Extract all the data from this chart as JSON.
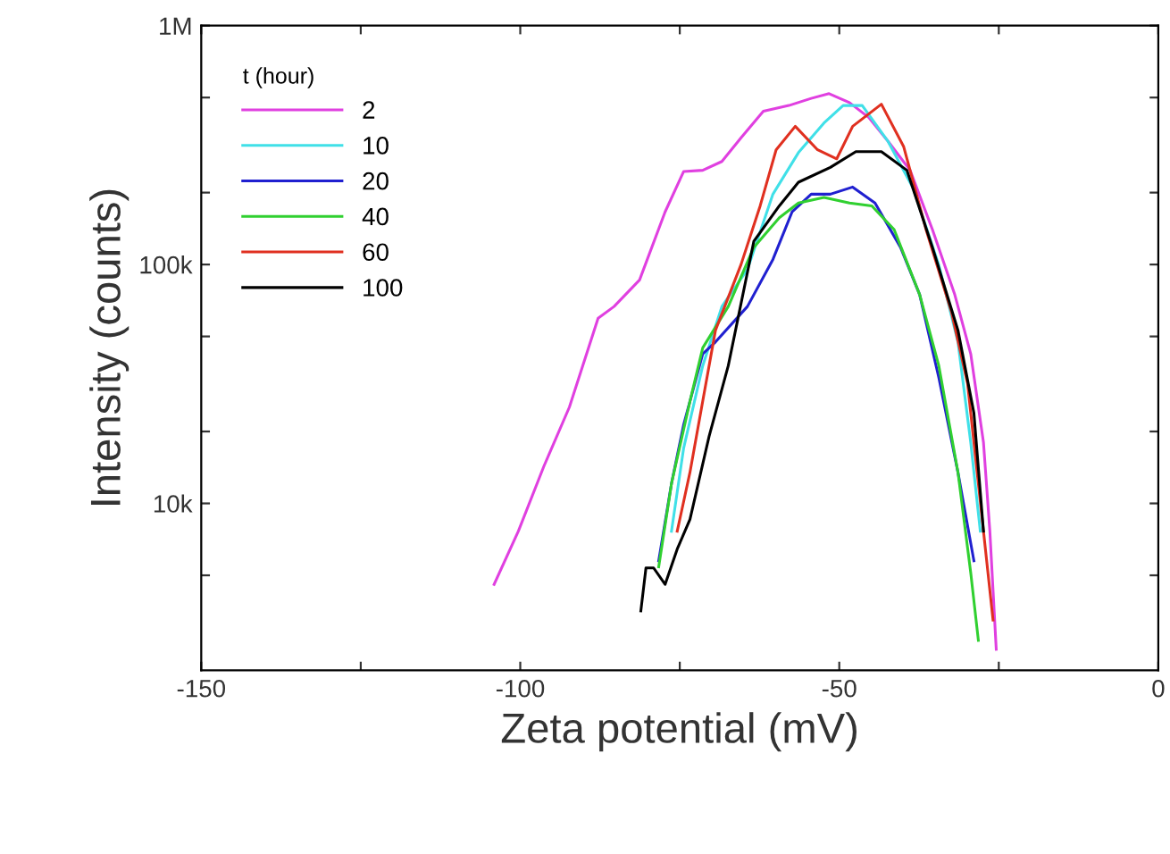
{
  "chart_data": {
    "type": "line",
    "xlabel": "Zeta potential (mV)",
    "ylabel": "Intensity (counts)",
    "legend_title": "t (hour)",
    "legend": "top left",
    "grid": false,
    "log": "y",
    "xlim": [
      -150,
      0
    ],
    "xticks": [
      -150,
      {
        "value": -125,
        "label": null
      },
      -100,
      {
        "value": -75,
        "label": null
      },
      -50,
      {
        "value": -25,
        "label": null
      },
      0
    ],
    "ylim": [
      2000,
      1000000
    ],
    "yticks": [
      {
        "value": 5000,
        "label": null
      },
      {
        "value": 10000,
        "label": "10k"
      },
      {
        "value": 20000,
        "label": null
      },
      {
        "value": 50000,
        "label": null
      },
      {
        "value": 100000,
        "label": "100k"
      },
      {
        "value": 200000,
        "label": null
      },
      {
        "value": 500000,
        "label": null
      },
      {
        "value": 1000000,
        "label": "1M"
      }
    ],
    "series": [
      {
        "name": "2",
        "color": "#e040e0",
        "x": [
          -104.1,
          -100.3,
          -96.3,
          -92.3,
          -87.8,
          -85.3,
          -81.3,
          -77.3,
          -74.4,
          -71.4,
          -68.4,
          -65.4,
          -61.9,
          -57.9,
          -54.4,
          -51.6,
          -48.4,
          -45.4,
          -42.4,
          -38.9,
          -35.4,
          -31.9,
          -29.4,
          -27.4,
          -26.4,
          -25.4
        ],
        "values": [
          4580,
          7650,
          14300,
          25300,
          59600,
          66700,
          86200,
          166000,
          245000,
          248000,
          270000,
          339000,
          438000,
          463000,
          496000,
          519000,
          476000,
          413000,
          329000,
          248000,
          140000,
          74800,
          42300,
          18000,
          7650,
          2450
        ]
      },
      {
        "name": "10",
        "color": "#40e0e8",
        "x": [
          -76.3,
          -74.4,
          -71.4,
          -68.4,
          -64.4,
          -60.4,
          -56.4,
          -52.4,
          -49.4,
          -46.4,
          -42.4,
          -38.4,
          -34.4,
          -31.4,
          -29.4,
          -27.9
        ],
        "values": [
          7650,
          17000,
          37700,
          66700,
          95300,
          197000,
          294000,
          391000,
          463000,
          463000,
          329000,
          208000,
          99500,
          47400,
          18000,
          7650
        ]
      },
      {
        "name": "20",
        "color": "#2020d0",
        "x": [
          -78.3,
          -76.3,
          -74.4,
          -71.4,
          -69.4,
          -64.4,
          -60.4,
          -57.4,
          -54.4,
          -51.4,
          -47.9,
          -44.4,
          -40.4,
          -37.4,
          -34.4,
          -31.4,
          -28.9
        ],
        "values": [
          5750,
          12100,
          21300,
          42300,
          47400,
          66700,
          105000,
          166000,
          197000,
          197000,
          211000,
          181000,
          118000,
          74800,
          33600,
          13500,
          5750
        ]
      },
      {
        "name": "40",
        "color": "#30d030",
        "x": [
          -78.3,
          -76.3,
          -73.4,
          -71.4,
          -67.4,
          -63.4,
          -59.4,
          -56.4,
          -52.4,
          -48.4,
          -44.9,
          -41.4,
          -37.4,
          -34.4,
          -31.4,
          -29.4,
          -28.2
        ],
        "values": [
          5430,
          12100,
          26800,
          44800,
          66700,
          118000,
          157000,
          181000,
          191000,
          181000,
          176000,
          140000,
          74800,
          37700,
          13500,
          5130,
          2670
        ]
      },
      {
        "name": "60",
        "color": "#e03020",
        "x": [
          -75.4,
          -73.4,
          -71.4,
          -69.4,
          -65.4,
          -62.4,
          -59.9,
          -56.9,
          -53.4,
          -50.4,
          -47.9,
          -43.4,
          -39.9,
          -36.4,
          -32.4,
          -29.9,
          -27.9,
          -25.9
        ],
        "values": [
          7650,
          13500,
          26800,
          53100,
          100000,
          176000,
          302000,
          379000,
          302000,
          277000,
          379000,
          469000,
          311000,
          140000,
          63100,
          31800,
          10200,
          3250
        ]
      },
      {
        "name": "100",
        "color": "#000000",
        "x": [
          -81.1,
          -80.3,
          -79.1,
          -77.3,
          -75.4,
          -73.4,
          -70.4,
          -67.4,
          -63.4,
          -59.4,
          -56.4,
          -51.4,
          -47.4,
          -43.4,
          -39.4,
          -35.4,
          -31.4,
          -28.9,
          -27.4
        ],
        "values": [
          3550,
          5370,
          5370,
          4580,
          6440,
          8570,
          19100,
          37700,
          125000,
          176000,
          221000,
          255000,
          297000,
          297000,
          248000,
          118000,
          53100,
          23900,
          7650
        ]
      }
    ]
  }
}
